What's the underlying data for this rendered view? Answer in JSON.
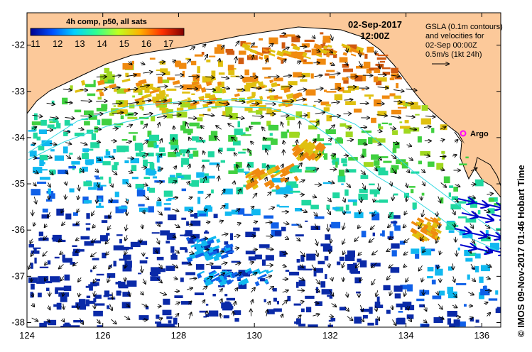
{
  "map": {
    "lon_range": [
      124,
      136.5
    ],
    "lat_range": [
      -38.1,
      -31.3
    ],
    "lon_ticks": [
      "124",
      "126",
      "128",
      "130",
      "132",
      "134",
      "136"
    ],
    "lat_ticks": [
      "-32",
      "-33",
      "-34",
      "-35",
      "-36",
      "-37",
      "-38"
    ],
    "land_color": "#fcc99a",
    "ocean_color": "#ffffff"
  },
  "colorbar": {
    "title": "4h comp, p50, all sats",
    "ticks": [
      "11",
      "12",
      "13",
      "14",
      "15",
      "16",
      "17"
    ],
    "colors": [
      "#00008f",
      "#0050ff",
      "#00d0ff",
      "#30ff90",
      "#c0ff20",
      "#ffb000",
      "#ff3000",
      "#800000"
    ]
  },
  "header": {
    "date": "02-Sep-2017",
    "time": "12:00Z"
  },
  "legend": {
    "line1": "GSLA (0.1m contours)",
    "line2": "and velocities for",
    "line3": "02-Sep 00:00Z",
    "line4": "0.5m/s (1kt 24h)"
  },
  "argo": {
    "label": "Argo",
    "lon": 135.5,
    "lat": -33.9,
    "color": "#ff00ff"
  },
  "credit": "© IMOS 09-Nov-2017 01:46 Hobart Time"
}
